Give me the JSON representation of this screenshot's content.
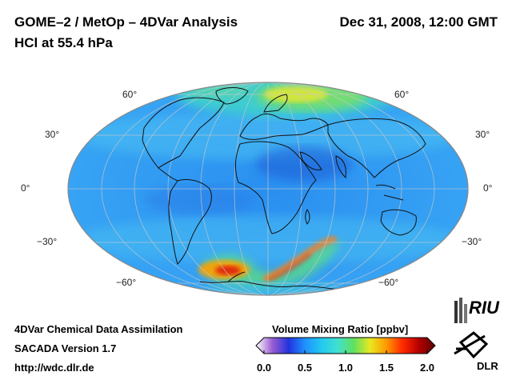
{
  "header": {
    "title": "GOME–2 / MetOp – 4DVar Analysis",
    "subtitle": "HCl at 55.4 hPa",
    "datetime": "Dec 31, 2008, 12:00 GMT"
  },
  "map": {
    "projection": "Mollweide",
    "variable": "HCl",
    "lat_labels_left": [
      "60°",
      "30°",
      "0°",
      "−30°",
      "−60°"
    ],
    "lat_labels_right": [
      "60°",
      "30°",
      "0°",
      "−30°",
      "−60°"
    ]
  },
  "footer": {
    "line1": "4DVar Chemical Data Assimilation",
    "line2": "SACADA Version 1.7",
    "line3": "http://wdc.dlr.de"
  },
  "colorbar": {
    "title": "Volume Mixing Ratio [ppbv]",
    "ticks": [
      "0.0",
      "0.5",
      "1.0",
      "1.5",
      "2.0"
    ],
    "min": 0.0,
    "max": 2.0,
    "colors": [
      "#ffffff",
      "#9a5cd0",
      "#2233dd",
      "#1e90ff",
      "#22c8f0",
      "#40e0d0",
      "#60e060",
      "#e8e820",
      "#ff9900",
      "#ff2a00",
      "#b40000",
      "#5a0000"
    ]
  },
  "logos": {
    "riu": "RIU",
    "dlr": "DLR"
  },
  "chart_data": {
    "type": "heatmap",
    "title": "HCl at 55.4 hPa",
    "colorbar_label": "Volume Mixing Ratio [ppbv]",
    "range": [
      0.0,
      2.0
    ],
    "regions": [
      {
        "name": "tropics",
        "approx_value": 0.4
      },
      {
        "name": "northern high latitudes (Arctic)",
        "approx_value": 1.1
      },
      {
        "name": "southern high latitudes (Antarctic ring)",
        "approx_value": 1.5
      },
      {
        "name": "south of South America max",
        "approx_value": 1.8
      }
    ]
  }
}
